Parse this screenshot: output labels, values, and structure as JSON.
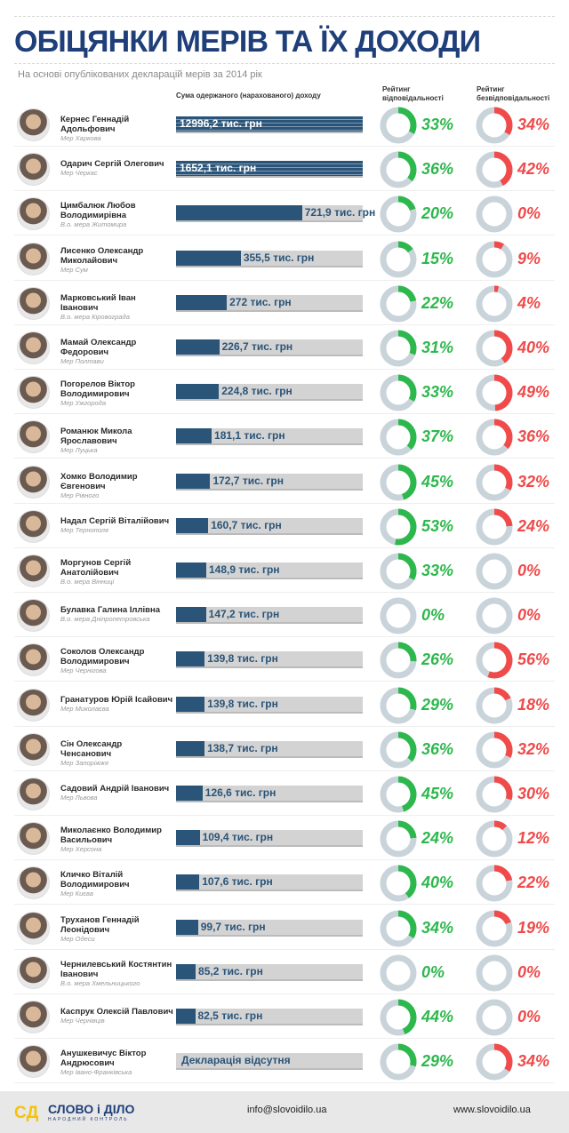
{
  "header": {
    "title": "ОБІЦЯНКИ МЕРІВ ТА ЇХ ДОХОДИ",
    "subtitle": "На основі опублікованих декларацій мерів за 2014 рік"
  },
  "colors": {
    "title": "#1f3f7a",
    "bar": "#2a5478",
    "responsibility": "#2db84d",
    "irresponsibility": "#f04a4a",
    "ring": "#c9d3da"
  },
  "chart_data": {
    "type": "table",
    "columns": [
      "Сума одержаного (нарахованого) доходу",
      "Рейтинг відповідальності",
      "Рейтинг безвідповідальності"
    ],
    "unit": "тис. грн",
    "rows": [
      {
        "name": "Кернес Геннадій Адольфович",
        "role": "Мер Харкова",
        "income": 12996.2,
        "income_label": "12996,2 тис. грн",
        "resp": 33,
        "irresp": 34
      },
      {
        "name": "Одарич Сергій Олегович",
        "role": "Мер Черкас",
        "income": 1652.1,
        "income_label": "1652,1 тис. грн",
        "resp": 36,
        "irresp": 42
      },
      {
        "name": "Цимбалюк Любов Володимирівна",
        "role": "В.о. мера Житомира",
        "income": 721.9,
        "income_label": "721,9 тис. грн",
        "resp": 20,
        "irresp": 0
      },
      {
        "name": "Лисенко Олександр Миколайович",
        "role": "Мер Сум",
        "income": 355.5,
        "income_label": "355,5 тис. грн",
        "resp": 15,
        "irresp": 9
      },
      {
        "name": "Марковський Іван Іванович",
        "role": "В.о. мера Кіровограда",
        "income": 272,
        "income_label": "272 тис. грн",
        "resp": 22,
        "irresp": 4
      },
      {
        "name": "Мамай Олександр Федорович",
        "role": "Мер Полтави",
        "income": 226.7,
        "income_label": "226,7 тис. грн",
        "resp": 31,
        "irresp": 40
      },
      {
        "name": "Погорелов Віктор Володимирович",
        "role": "Мер Ужгорода",
        "income": 224.8,
        "income_label": "224,8 тис. грн",
        "resp": 33,
        "irresp": 49
      },
      {
        "name": "Романюк Микола Ярославович",
        "role": "Мер Луцька",
        "income": 181.1,
        "income_label": "181,1 тис. грн",
        "resp": 37,
        "irresp": 36
      },
      {
        "name": "Хомко Володимир Євгенович",
        "role": "Мер Рівного",
        "income": 172.7,
        "income_label": "172,7 тис. грн",
        "resp": 45,
        "irresp": 32
      },
      {
        "name": "Надал Сергій Віталійович",
        "role": "Мер Тернополя",
        "income": 160.7,
        "income_label": "160,7 тис. грн",
        "resp": 53,
        "irresp": 24
      },
      {
        "name": "Моргунов Сергій Анатолійович",
        "role": "В.о. мера Вінниці",
        "income": 148.9,
        "income_label": "148,9 тис. грн",
        "resp": 33,
        "irresp": 0
      },
      {
        "name": "Булавка Галина Іллівна",
        "role": "В.о. мера Дніпропетровська",
        "income": 147.2,
        "income_label": "147,2 тис. грн",
        "resp": 0,
        "irresp": 0
      },
      {
        "name": "Соколов Олександр Володимирович",
        "role": "Мер Чернігова",
        "income": 139.8,
        "income_label": "139,8 тис. грн",
        "resp": 26,
        "irresp": 56
      },
      {
        "name": "Гранатуров Юрій Ісайович",
        "role": "Мер Миколаєва",
        "income": 139.8,
        "income_label": "139,8 тис. грн",
        "resp": 29,
        "irresp": 18
      },
      {
        "name": "Сін Олександр Ченсанович",
        "role": "Мер Запоріжжя",
        "income": 138.7,
        "income_label": "138,7 тис. грн",
        "resp": 36,
        "irresp": 32
      },
      {
        "name": "Садовий Андрій Іванович",
        "role": "Мер Львова",
        "income": 126.6,
        "income_label": "126,6 тис. грн",
        "resp": 45,
        "irresp": 30
      },
      {
        "name": "Миколаєнко Володимир Васильович",
        "role": "Мер Херсона",
        "income": 109.4,
        "income_label": "109,4 тис. грн",
        "resp": 24,
        "irresp": 12
      },
      {
        "name": "Кличко Віталій Володимирович",
        "role": "Мер Києва",
        "income": 107.6,
        "income_label": "107,6 тис. грн",
        "resp": 40,
        "irresp": 22
      },
      {
        "name": "Труханов Геннадій Леонідович",
        "role": "Мер Одеси",
        "income": 99.7,
        "income_label": "99,7 тис. грн",
        "resp": 34,
        "irresp": 19
      },
      {
        "name": "Чернилевський Костянтин Іванович",
        "role": "В.о. мера Хмельницького",
        "income": 85.2,
        "income_label": "85,2 тис. грн",
        "resp": 0,
        "irresp": 0
      },
      {
        "name": "Каспрук Олексій Павлович",
        "role": "Мер Чернівців",
        "income": 82.5,
        "income_label": "82,5 тис. грн",
        "resp": 44,
        "irresp": 0
      },
      {
        "name": "Анушкевичус Віктор Андрюсович",
        "role": "Мер Івано-Франківська",
        "income": null,
        "income_label": "Декларація відсутня",
        "resp": 29,
        "irresp": 34
      }
    ]
  },
  "footer": {
    "logo": "СЛОВО і ДІЛО",
    "logo_sub": "НАРОДНИЙ КОНТРОЛЬ",
    "email": "info@slovoidilo.ua",
    "website": "www.slovoidilo.ua"
  }
}
